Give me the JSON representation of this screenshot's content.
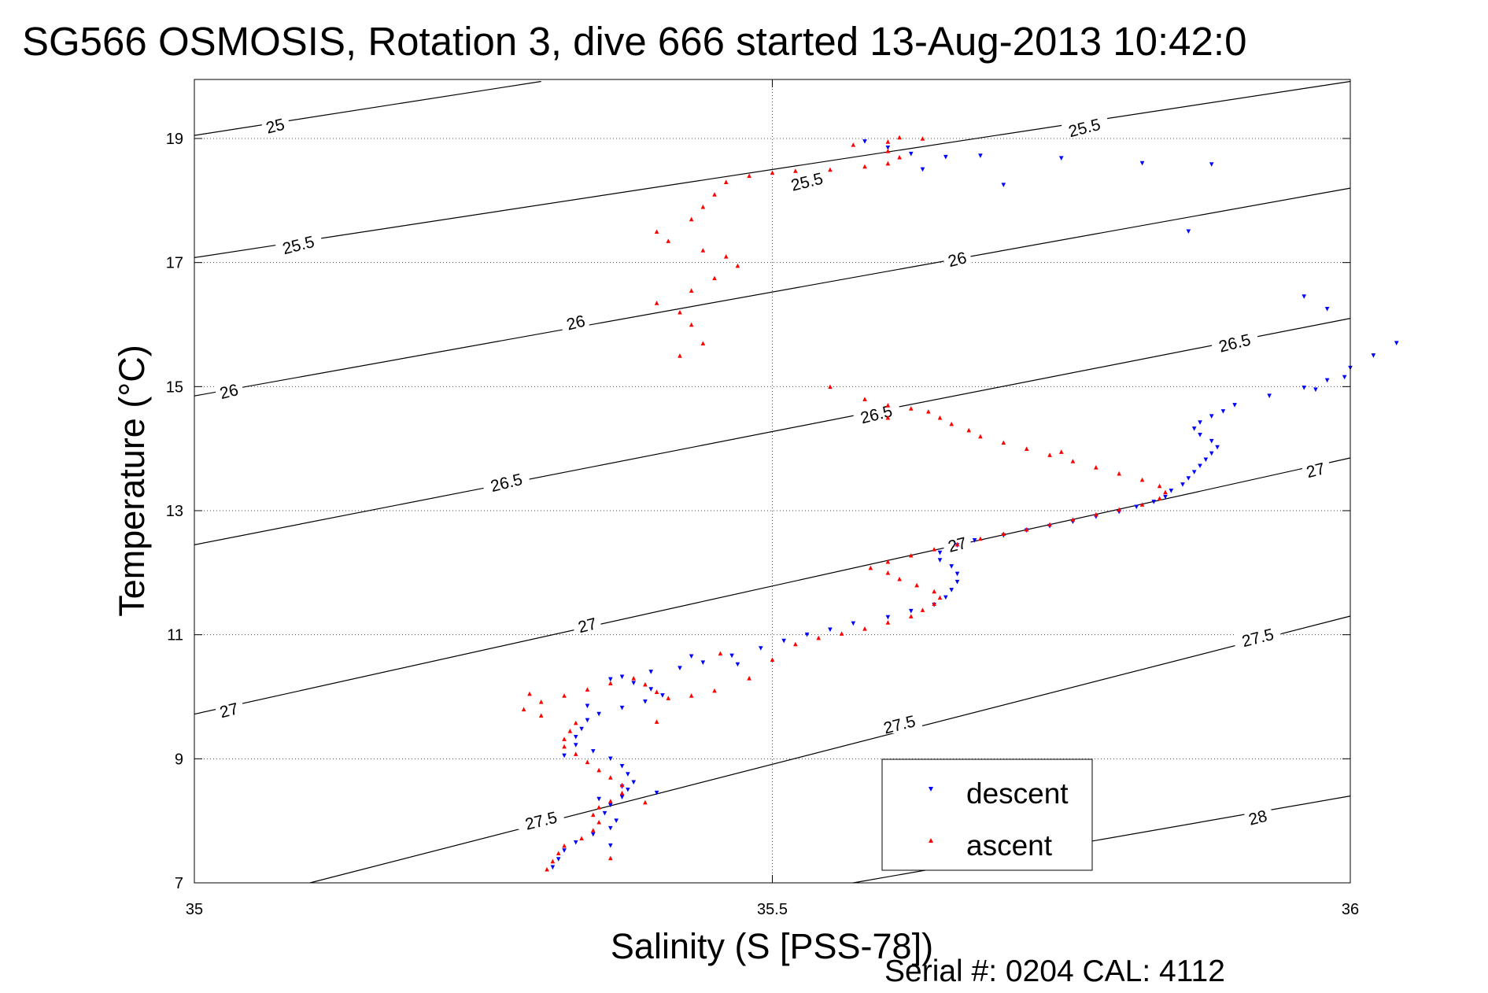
{
  "title": "SG566 OSMOSIS, Rotation 3, dive 666 started 13-Aug-2013 10:42:0",
  "footer": "Serial #: 0204  CAL: 4112",
  "chart_data": {
    "type": "scatter",
    "xlabel": "Salinity (S [PSS-78])",
    "ylabel": "Temperature (°C)",
    "xlim": [
      35,
      36
    ],
    "ylim": [
      7,
      20
    ],
    "x_ticks": [
      "35",
      "35.5",
      "36"
    ],
    "y_ticks": [
      "7",
      "9",
      "11",
      "13",
      "15",
      "17",
      "19"
    ],
    "grid": "dotted, at x ticks and y ticks",
    "legend_placement": "bottom-right",
    "density_contours": [
      {
        "label": "25",
        "line": [
          [
            35.0,
            19.05
          ],
          [
            35.3,
            19.92
          ]
        ]
      },
      {
        "label": "25.5",
        "line": [
          [
            35.0,
            17.08
          ],
          [
            36.0,
            19.92
          ]
        ]
      },
      {
        "label": "26",
        "line": [
          [
            35.0,
            14.85
          ],
          [
            36.0,
            18.2
          ]
        ]
      },
      {
        "label": "26.5",
        "line": [
          [
            35.0,
            12.45
          ],
          [
            36.0,
            16.1
          ]
        ]
      },
      {
        "label": "27",
        "line": [
          [
            35.0,
            9.72
          ],
          [
            36.0,
            13.85
          ]
        ]
      },
      {
        "label": "27.5",
        "line": [
          [
            35.1,
            7.0
          ],
          [
            36.0,
            11.3
          ]
        ]
      },
      {
        "label": "28",
        "line": [
          [
            35.57,
            7.0
          ],
          [
            36.0,
            8.4
          ]
        ]
      }
    ],
    "contour_labels": [
      {
        "text": "25",
        "x": 35.07,
        "y": 19.2
      },
      {
        "text": "25.5",
        "x": 35.53,
        "y": 18.3
      },
      {
        "text": "25.5",
        "x": 35.77,
        "y": 19.17
      },
      {
        "text": "25.5",
        "x": 35.09,
        "y": 17.28
      },
      {
        "text": "26",
        "x": 35.33,
        "y": 16.03
      },
      {
        "text": "26",
        "x": 35.66,
        "y": 17.05
      },
      {
        "text": "26",
        "x": 35.03,
        "y": 14.92
      },
      {
        "text": "26.5",
        "x": 35.27,
        "y": 13.45
      },
      {
        "text": "26.5",
        "x": 35.59,
        "y": 14.55
      },
      {
        "text": "26.5",
        "x": 35.9,
        "y": 15.7
      },
      {
        "text": "27",
        "x": 35.03,
        "y": 9.78
      },
      {
        "text": "27",
        "x": 35.34,
        "y": 11.15
      },
      {
        "text": "27",
        "x": 35.66,
        "y": 12.45
      },
      {
        "text": "27",
        "x": 35.97,
        "y": 13.65
      },
      {
        "text": "27.5",
        "x": 35.3,
        "y": 8.0
      },
      {
        "text": "27.5",
        "x": 35.61,
        "y": 9.55
      },
      {
        "text": "27.5",
        "x": 35.92,
        "y": 10.95
      },
      {
        "text": "28",
        "x": 35.92,
        "y": 8.05
      }
    ],
    "series": [
      {
        "name": "descent",
        "marker": "triangle-down",
        "color": "#0000ff",
        "points": [
          [
            35.31,
            7.25
          ],
          [
            35.315,
            7.38
          ],
          [
            35.32,
            7.52
          ],
          [
            35.33,
            7.65
          ],
          [
            35.345,
            7.78
          ],
          [
            35.36,
            7.88
          ],
          [
            35.365,
            8.0
          ],
          [
            35.355,
            8.12
          ],
          [
            35.36,
            8.25
          ],
          [
            35.37,
            8.38
          ],
          [
            35.375,
            8.5
          ],
          [
            35.38,
            8.62
          ],
          [
            35.375,
            8.75
          ],
          [
            35.37,
            8.88
          ],
          [
            35.36,
            9.0
          ],
          [
            35.345,
            9.12
          ],
          [
            35.33,
            9.22
          ],
          [
            35.33,
            9.35
          ],
          [
            35.335,
            9.48
          ],
          [
            35.34,
            9.62
          ],
          [
            35.35,
            9.72
          ],
          [
            35.37,
            9.82
          ],
          [
            35.39,
            9.92
          ],
          [
            35.405,
            10.02
          ],
          [
            35.395,
            10.12
          ],
          [
            35.38,
            10.22
          ],
          [
            35.37,
            10.32
          ],
          [
            35.395,
            10.4
          ],
          [
            35.42,
            10.46
          ],
          [
            35.44,
            10.55
          ],
          [
            35.465,
            10.66
          ],
          [
            35.49,
            10.78
          ],
          [
            35.51,
            10.9
          ],
          [
            35.53,
            11.0
          ],
          [
            35.55,
            11.08
          ],
          [
            35.57,
            11.18
          ],
          [
            35.6,
            11.28
          ],
          [
            35.62,
            11.38
          ],
          [
            35.64,
            11.48
          ],
          [
            35.65,
            11.6
          ],
          [
            35.655,
            11.72
          ],
          [
            35.66,
            11.85
          ],
          [
            35.66,
            11.98
          ],
          [
            35.655,
            12.1
          ],
          [
            35.645,
            12.2
          ],
          [
            35.645,
            12.32
          ],
          [
            35.66,
            12.44
          ],
          [
            35.675,
            12.52
          ],
          [
            35.7,
            12.6
          ],
          [
            35.72,
            12.68
          ],
          [
            35.74,
            12.75
          ],
          [
            35.76,
            12.82
          ],
          [
            35.78,
            12.9
          ],
          [
            35.8,
            12.98
          ],
          [
            35.815,
            13.06
          ],
          [
            35.83,
            13.14
          ],
          [
            35.84,
            13.22
          ],
          [
            35.845,
            13.32
          ],
          [
            35.855,
            13.42
          ],
          [
            35.86,
            13.52
          ],
          [
            35.865,
            13.62
          ],
          [
            35.87,
            13.72
          ],
          [
            35.875,
            13.82
          ],
          [
            35.88,
            13.92
          ],
          [
            35.885,
            14.02
          ],
          [
            35.88,
            14.12
          ],
          [
            35.87,
            14.22
          ],
          [
            35.865,
            14.32
          ],
          [
            35.87,
            14.42
          ],
          [
            35.88,
            14.52
          ],
          [
            35.89,
            14.6
          ],
          [
            35.9,
            14.7
          ],
          [
            35.93,
            14.85
          ],
          [
            35.96,
            14.98
          ],
          [
            35.98,
            15.1
          ],
          [
            36.0,
            15.3
          ],
          [
            36.02,
            15.5
          ],
          [
            36.04,
            15.7
          ],
          [
            35.58,
            18.95
          ],
          [
            35.6,
            18.85
          ],
          [
            35.62,
            18.75
          ],
          [
            35.65,
            18.7
          ],
          [
            35.68,
            18.72
          ],
          [
            35.75,
            18.68
          ],
          [
            35.82,
            18.6
          ],
          [
            35.88,
            18.58
          ],
          [
            35.63,
            18.5
          ],
          [
            35.7,
            18.25
          ],
          [
            35.86,
            17.5
          ],
          [
            35.96,
            16.45
          ],
          [
            35.98,
            16.25
          ],
          [
            35.97,
            14.95
          ],
          [
            35.995,
            15.15
          ],
          [
            35.4,
            8.45
          ],
          [
            35.37,
            8.55
          ],
          [
            35.36,
            7.6
          ],
          [
            35.35,
            8.35
          ],
          [
            35.34,
            9.85
          ],
          [
            35.36,
            10.28
          ],
          [
            35.32,
            9.05
          ],
          [
            35.43,
            10.65
          ],
          [
            35.47,
            10.52
          ]
        ]
      },
      {
        "name": "ascent",
        "marker": "triangle-up",
        "color": "#ff0000",
        "points": [
          [
            35.305,
            7.22
          ],
          [
            35.31,
            7.35
          ],
          [
            35.315,
            7.48
          ],
          [
            35.32,
            7.6
          ],
          [
            35.335,
            7.72
          ],
          [
            35.345,
            7.85
          ],
          [
            35.35,
            7.98
          ],
          [
            35.345,
            8.1
          ],
          [
            35.35,
            8.22
          ],
          [
            35.36,
            8.32
          ],
          [
            35.37,
            8.45
          ],
          [
            35.37,
            8.58
          ],
          [
            35.36,
            8.7
          ],
          [
            35.35,
            8.82
          ],
          [
            35.34,
            8.95
          ],
          [
            35.33,
            9.08
          ],
          [
            35.32,
            9.2
          ],
          [
            35.32,
            9.32
          ],
          [
            35.325,
            9.45
          ],
          [
            35.33,
            9.58
          ],
          [
            35.3,
            9.7
          ],
          [
            35.285,
            9.8
          ],
          [
            35.3,
            9.92
          ],
          [
            35.32,
            10.02
          ],
          [
            35.34,
            10.12
          ],
          [
            35.36,
            10.22
          ],
          [
            35.38,
            10.3
          ],
          [
            35.39,
            10.2
          ],
          [
            35.4,
            10.08
          ],
          [
            35.41,
            9.98
          ],
          [
            35.43,
            10.02
          ],
          [
            35.45,
            10.1
          ],
          [
            35.48,
            10.3
          ],
          [
            35.5,
            10.6
          ],
          [
            35.52,
            10.85
          ],
          [
            35.54,
            10.95
          ],
          [
            35.56,
            11.02
          ],
          [
            35.58,
            11.1
          ],
          [
            35.6,
            11.2
          ],
          [
            35.62,
            11.3
          ],
          [
            35.63,
            11.4
          ],
          [
            35.64,
            11.5
          ],
          [
            35.645,
            11.6
          ],
          [
            35.64,
            11.7
          ],
          [
            35.625,
            11.8
          ],
          [
            35.61,
            11.9
          ],
          [
            35.6,
            12.0
          ],
          [
            35.585,
            12.08
          ],
          [
            35.6,
            12.18
          ],
          [
            35.62,
            12.28
          ],
          [
            35.64,
            12.38
          ],
          [
            35.66,
            12.46
          ],
          [
            35.68,
            12.55
          ],
          [
            35.7,
            12.63
          ],
          [
            35.72,
            12.7
          ],
          [
            35.74,
            12.78
          ],
          [
            35.76,
            12.86
          ],
          [
            35.78,
            12.94
          ],
          [
            35.8,
            13.02
          ],
          [
            35.82,
            13.1
          ],
          [
            35.835,
            13.2
          ],
          [
            35.84,
            13.3
          ],
          [
            35.835,
            13.4
          ],
          [
            35.82,
            13.5
          ],
          [
            35.8,
            13.6
          ],
          [
            35.78,
            13.7
          ],
          [
            35.76,
            13.8
          ],
          [
            35.74,
            13.9
          ],
          [
            35.72,
            14.0
          ],
          [
            35.7,
            14.1
          ],
          [
            35.68,
            14.2
          ],
          [
            35.67,
            14.3
          ],
          [
            35.655,
            14.4
          ],
          [
            35.645,
            14.5
          ],
          [
            35.635,
            14.6
          ],
          [
            35.62,
            14.65
          ],
          [
            35.6,
            14.7
          ],
          [
            35.58,
            14.8
          ],
          [
            35.55,
            15.0
          ],
          [
            35.42,
            15.5
          ],
          [
            35.44,
            15.7
          ],
          [
            35.43,
            16.0
          ],
          [
            35.42,
            16.2
          ],
          [
            35.4,
            16.35
          ],
          [
            35.43,
            16.55
          ],
          [
            35.45,
            16.75
          ],
          [
            35.47,
            16.95
          ],
          [
            35.46,
            17.1
          ],
          [
            35.44,
            17.2
          ],
          [
            35.41,
            17.35
          ],
          [
            35.4,
            17.5
          ],
          [
            35.43,
            17.7
          ],
          [
            35.44,
            17.9
          ],
          [
            35.45,
            18.1
          ],
          [
            35.46,
            18.3
          ],
          [
            35.48,
            18.4
          ],
          [
            35.5,
            18.45
          ],
          [
            35.52,
            18.48
          ],
          [
            35.55,
            18.5
          ],
          [
            35.58,
            18.55
          ],
          [
            35.6,
            18.6
          ],
          [
            35.61,
            18.7
          ],
          [
            35.6,
            18.8
          ],
          [
            35.6,
            18.95
          ],
          [
            35.61,
            19.02
          ],
          [
            35.63,
            19.0
          ],
          [
            35.57,
            18.9
          ],
          [
            35.4,
            9.6
          ],
          [
            35.39,
            8.3
          ],
          [
            35.36,
            7.4
          ],
          [
            35.455,
            10.7
          ],
          [
            35.29,
            10.05
          ],
          [
            35.6,
            14.5
          ],
          [
            35.75,
            13.95
          ]
        ]
      }
    ]
  }
}
